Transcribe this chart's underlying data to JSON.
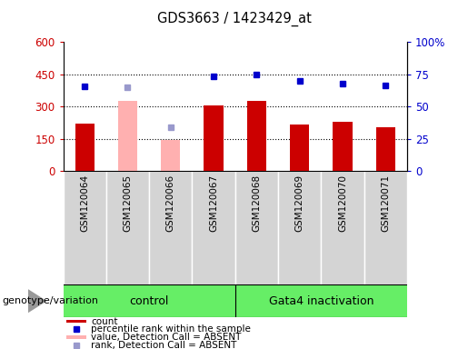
{
  "title": "GDS3663 / 1423429_at",
  "samples": [
    "GSM120064",
    "GSM120065",
    "GSM120066",
    "GSM120067",
    "GSM120068",
    "GSM120069",
    "GSM120070",
    "GSM120071"
  ],
  "count_values": [
    220,
    null,
    null,
    305,
    325,
    218,
    228,
    205
  ],
  "count_absent_values": [
    null,
    325,
    145,
    null,
    null,
    null,
    null,
    null
  ],
  "rank_values": [
    395,
    null,
    null,
    440,
    448,
    418,
    405,
    397
  ],
  "rank_absent_values": [
    null,
    388,
    202,
    null,
    null,
    null,
    null,
    null
  ],
  "group_info": [
    {
      "start": 0,
      "end": 3,
      "label": "control"
    },
    {
      "start": 4,
      "end": 7,
      "label": "Gata4 inactivation"
    }
  ],
  "ylim_left": [
    0,
    600
  ],
  "ylim_right": [
    0,
    100
  ],
  "yticks_left": [
    0,
    150,
    300,
    450,
    600
  ],
  "yticks_right": [
    0,
    25,
    50,
    75,
    100
  ],
  "ytick_labels_right": [
    "0",
    "25",
    "50",
    "75",
    "100%"
  ],
  "bar_color_present": "#cc0000",
  "bar_color_absent": "#ffb0b0",
  "dot_color_present": "#0000cc",
  "dot_color_absent": "#9999cc",
  "bar_width": 0.45,
  "grid_color": "black",
  "green_color": "#66ee66",
  "left_tick_color": "#cc0000",
  "right_tick_color": "#0000cc",
  "legend_items": [
    {
      "label": "count",
      "color": "#cc0000",
      "type": "bar"
    },
    {
      "label": "percentile rank within the sample",
      "color": "#0000cc",
      "type": "dot"
    },
    {
      "label": "value, Detection Call = ABSENT",
      "color": "#ffb0b0",
      "type": "bar"
    },
    {
      "label": "rank, Detection Call = ABSENT",
      "color": "#9999cc",
      "type": "dot"
    }
  ]
}
